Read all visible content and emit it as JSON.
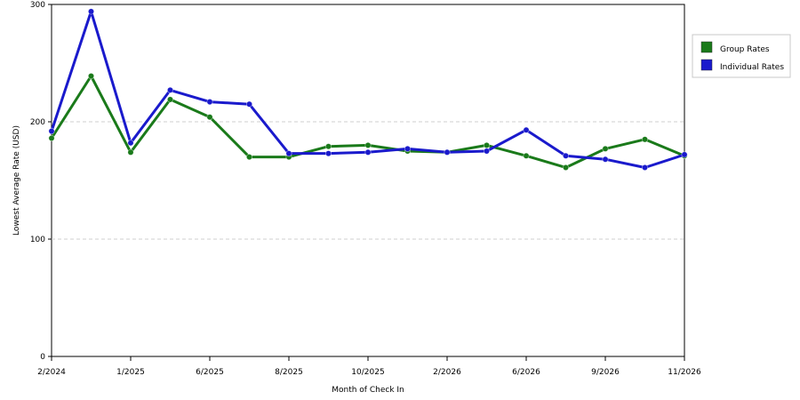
{
  "chart_data": {
    "type": "line",
    "title": "",
    "xlabel": "Month of Check In",
    "ylabel": "Lowest Average Rate (USD)",
    "ylim": [
      0,
      300
    ],
    "yticks": [
      0,
      100,
      200,
      300
    ],
    "grid": "horizontal dashed",
    "legend_position": "top-right",
    "x_tick_labels": [
      "2/2024",
      "1/2025",
      "6/2025",
      "8/2025",
      "10/2025",
      "2/2026",
      "6/2026",
      "9/2026",
      "11/2026"
    ],
    "x_tick_indices": [
      0,
      2,
      4,
      6,
      8,
      10,
      12,
      14,
      16
    ],
    "point_count": 17,
    "series": [
      {
        "name": "Group Rates",
        "color": "#1a7a1a",
        "values": [
          186,
          239,
          174,
          219,
          204,
          170,
          170,
          179,
          180,
          175,
          174,
          180,
          171,
          161,
          177,
          185,
          171
        ]
      },
      {
        "name": "Individual Rates",
        "color": "#1a1acc",
        "values": [
          192,
          294,
          182,
          227,
          217,
          215,
          173,
          173,
          174,
          177,
          174,
          175,
          193,
          171,
          168,
          161,
          172
        ]
      }
    ]
  }
}
